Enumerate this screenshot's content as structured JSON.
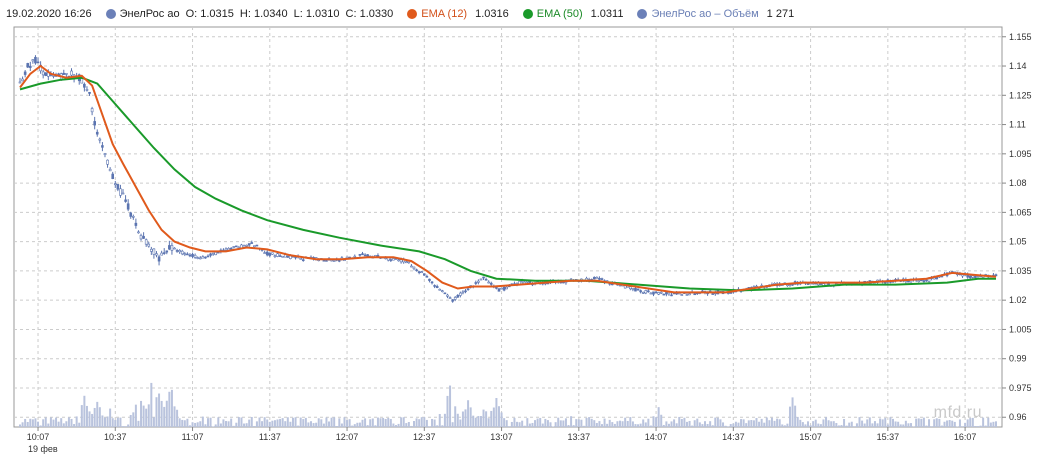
{
  "header": {
    "datetime": "19.02.2020 16:26",
    "ticker": "ЭнелРос ао",
    "o_label": "O:",
    "o_value": "1.0315",
    "h_label": "H:",
    "h_value": "1.0340",
    "l_label": "L:",
    "l_value": "1.0310",
    "c_label": "C:",
    "c_value": "1.0330",
    "ema12_label": "EMA (12)",
    "ema12_value": "1.0316",
    "ema50_label": "EMA (50)",
    "ema50_value": "1.0311",
    "volume_label": "ЭнелРос ао – Объём",
    "volume_value": "1 271"
  },
  "colors": {
    "candles": "#5b74b0",
    "ema12": "#e05a1c",
    "ema50": "#1a9a2a",
    "volume": "#b9c3dd",
    "grid": "#cccccc"
  },
  "watermark": "mfd.ru",
  "chart_data": {
    "type": "candlestick",
    "y_ticks": [
      "1.155",
      "1.14",
      "1.125",
      "1.11",
      "1.095",
      "1.08",
      "1.065",
      "1.05",
      "1.035",
      "1.02",
      "1.005",
      "0.99",
      "0.975",
      "0.96"
    ],
    "ylim": [
      0.955,
      1.16
    ],
    "x_ticks": [
      "10:07",
      "10:37",
      "11:07",
      "11:37",
      "12:07",
      "12:37",
      "13:07",
      "13:37",
      "14:07",
      "14:37",
      "15:07",
      "15:37",
      "16:07"
    ],
    "x_date_label": "19 фев",
    "xlim_minutes": [
      0,
      379
    ],
    "grid": true,
    "price_path": [
      [
        0,
        1.13
      ],
      [
        3,
        1.14
      ],
      [
        6,
        1.143
      ],
      [
        9,
        1.137
      ],
      [
        12,
        1.134
      ],
      [
        18,
        1.135
      ],
      [
        22,
        1.136
      ],
      [
        27,
        1.125
      ],
      [
        30,
        1.105
      ],
      [
        34,
        1.09
      ],
      [
        38,
        1.078
      ],
      [
        42,
        1.068
      ],
      [
        46,
        1.055
      ],
      [
        50,
        1.048
      ],
      [
        54,
        1.042
      ],
      [
        58,
        1.047
      ],
      [
        62,
        1.045
      ],
      [
        66,
        1.043
      ],
      [
        72,
        1.042
      ],
      [
        78,
        1.045
      ],
      [
        84,
        1.047
      ],
      [
        90,
        1.049
      ],
      [
        96,
        1.044
      ],
      [
        105,
        1.042
      ],
      [
        115,
        1.041
      ],
      [
        125,
        1.041
      ],
      [
        133,
        1.043
      ],
      [
        140,
        1.042
      ],
      [
        150,
        1.04
      ],
      [
        158,
        1.032
      ],
      [
        163,
        1.025
      ],
      [
        168,
        1.02
      ],
      [
        174,
        1.026
      ],
      [
        180,
        1.031
      ],
      [
        186,
        1.025
      ],
      [
        194,
        1.029
      ],
      [
        204,
        1.029
      ],
      [
        214,
        1.03
      ],
      [
        224,
        1.031
      ],
      [
        234,
        1.027
      ],
      [
        244,
        1.024
      ],
      [
        254,
        1.023
      ],
      [
        264,
        1.024
      ],
      [
        274,
        1.024
      ],
      [
        284,
        1.026
      ],
      [
        294,
        1.028
      ],
      [
        304,
        1.029
      ],
      [
        316,
        1.028
      ],
      [
        328,
        1.029
      ],
      [
        340,
        1.03
      ],
      [
        352,
        1.03
      ],
      [
        362,
        1.034
      ],
      [
        370,
        1.032
      ],
      [
        379,
        1.033
      ]
    ],
    "ema12_path": [
      [
        0,
        1.129
      ],
      [
        4,
        1.136
      ],
      [
        8,
        1.14
      ],
      [
        12,
        1.136
      ],
      [
        18,
        1.134
      ],
      [
        24,
        1.135
      ],
      [
        28,
        1.13
      ],
      [
        32,
        1.115
      ],
      [
        36,
        1.1
      ],
      [
        40,
        1.09
      ],
      [
        45,
        1.078
      ],
      [
        50,
        1.066
      ],
      [
        55,
        1.056
      ],
      [
        60,
        1.05
      ],
      [
        66,
        1.047
      ],
      [
        72,
        1.045
      ],
      [
        80,
        1.045
      ],
      [
        88,
        1.047
      ],
      [
        96,
        1.046
      ],
      [
        105,
        1.043
      ],
      [
        115,
        1.041
      ],
      [
        125,
        1.041
      ],
      [
        135,
        1.042
      ],
      [
        145,
        1.042
      ],
      [
        152,
        1.04
      ],
      [
        158,
        1.035
      ],
      [
        164,
        1.029
      ],
      [
        170,
        1.026
      ],
      [
        176,
        1.027
      ],
      [
        184,
        1.027
      ],
      [
        194,
        1.028
      ],
      [
        204,
        1.029
      ],
      [
        214,
        1.03
      ],
      [
        224,
        1.03
      ],
      [
        234,
        1.028
      ],
      [
        244,
        1.026
      ],
      [
        254,
        1.024
      ],
      [
        264,
        1.024
      ],
      [
        274,
        1.024
      ],
      [
        284,
        1.026
      ],
      [
        294,
        1.028
      ],
      [
        304,
        1.029
      ],
      [
        316,
        1.029
      ],
      [
        328,
        1.029
      ],
      [
        340,
        1.03
      ],
      [
        352,
        1.031
      ],
      [
        362,
        1.034
      ],
      [
        370,
        1.033
      ],
      [
        379,
        1.032
      ]
    ],
    "ema50_path": [
      [
        0,
        1.128
      ],
      [
        8,
        1.131
      ],
      [
        16,
        1.133
      ],
      [
        24,
        1.134
      ],
      [
        30,
        1.131
      ],
      [
        36,
        1.122
      ],
      [
        44,
        1.11
      ],
      [
        52,
        1.098
      ],
      [
        60,
        1.087
      ],
      [
        68,
        1.078
      ],
      [
        76,
        1.072
      ],
      [
        86,
        1.066
      ],
      [
        96,
        1.061
      ],
      [
        110,
        1.056
      ],
      [
        124,
        1.052
      ],
      [
        140,
        1.048
      ],
      [
        155,
        1.045
      ],
      [
        165,
        1.041
      ],
      [
        175,
        1.035
      ],
      [
        185,
        1.031
      ],
      [
        200,
        1.03
      ],
      [
        220,
        1.03
      ],
      [
        240,
        1.028
      ],
      [
        260,
        1.026
      ],
      [
        280,
        1.025
      ],
      [
        300,
        1.026
      ],
      [
        320,
        1.028
      ],
      [
        340,
        1.028
      ],
      [
        360,
        1.029
      ],
      [
        372,
        1.031
      ],
      [
        379,
        1.031
      ]
    ],
    "volume_spikes": [
      [
        25,
        0.26
      ],
      [
        30,
        0.19
      ],
      [
        35,
        0.12
      ],
      [
        46,
        0.26
      ],
      [
        52,
        0.41
      ],
      [
        55,
        0.23
      ],
      [
        58,
        0.31
      ],
      [
        60,
        0.16
      ],
      [
        72,
        0.09
      ],
      [
        90,
        0.07
      ],
      [
        108,
        0.05
      ],
      [
        122,
        0.05
      ],
      [
        152,
        0.06
      ],
      [
        163,
        0.12
      ],
      [
        167,
        0.27
      ],
      [
        174,
        0.19
      ],
      [
        180,
        0.14
      ],
      [
        185,
        0.21
      ],
      [
        195,
        0.07
      ],
      [
        214,
        0.09
      ],
      [
        248,
        0.13
      ],
      [
        262,
        0.07
      ],
      [
        300,
        0.2
      ],
      [
        318,
        0.06
      ],
      [
        352,
        0.08
      ],
      [
        370,
        0.05
      ]
    ],
    "volume_base": 0.045
  }
}
